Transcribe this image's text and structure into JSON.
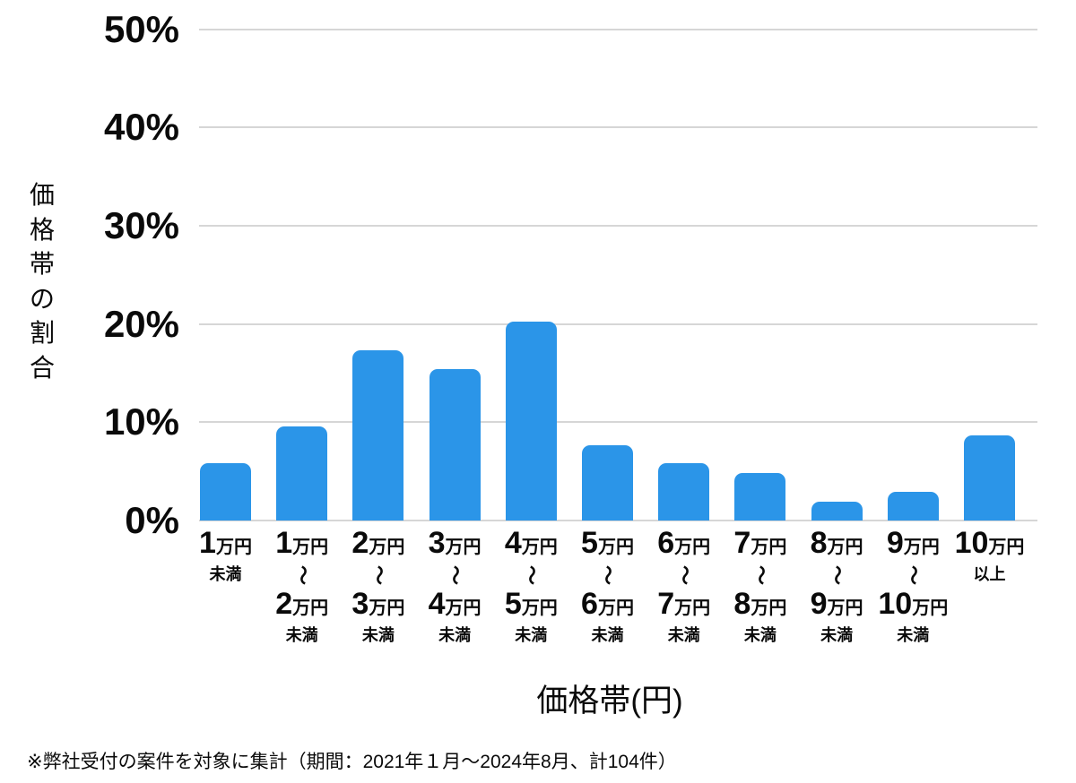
{
  "chart_data": {
    "type": "bar",
    "title": "",
    "xlabel": "価格帯(円)",
    "ylabel": "価格帯の割合",
    "ylim": [
      0,
      50
    ],
    "grid": true,
    "legend": "none",
    "ytick_labels": [
      "0%",
      "10%",
      "20%",
      "30%",
      "40%",
      "50%"
    ],
    "bar_color": "#2B95E8",
    "grid_color": "#d6d6d6",
    "categories": [
      {
        "num": "1",
        "unit": "万円",
        "qualifier": "未満"
      },
      {
        "num": "1",
        "unit": "万円",
        "tilde": "〜",
        "num2": "2",
        "unit2": "万円",
        "qualifier": "未満"
      },
      {
        "num": "2",
        "unit": "万円",
        "tilde": "〜",
        "num2": "3",
        "unit2": "万円",
        "qualifier": "未満"
      },
      {
        "num": "3",
        "unit": "万円",
        "tilde": "〜",
        "num2": "4",
        "unit2": "万円",
        "qualifier": "未満"
      },
      {
        "num": "4",
        "unit": "万円",
        "tilde": "〜",
        "num2": "5",
        "unit2": "万円",
        "qualifier": "未満"
      },
      {
        "num": "5",
        "unit": "万円",
        "tilde": "〜",
        "num2": "6",
        "unit2": "万円",
        "qualifier": "未満"
      },
      {
        "num": "6",
        "unit": "万円",
        "tilde": "〜",
        "num2": "7",
        "unit2": "万円",
        "qualifier": "未満"
      },
      {
        "num": "7",
        "unit": "万円",
        "tilde": "〜",
        "num2": "8",
        "unit2": "万円",
        "qualifier": "未満"
      },
      {
        "num": "8",
        "unit": "万円",
        "tilde": "〜",
        "num2": "9",
        "unit2": "万円",
        "qualifier": "未満"
      },
      {
        "num": "9",
        "unit": "万円",
        "tilde": "〜",
        "num2": "10",
        "unit2": "万円",
        "qualifier": "未満"
      },
      {
        "num": "10",
        "unit": "万円",
        "qualifier": "以上"
      }
    ],
    "values": [
      5.8,
      9.6,
      17.3,
      15.4,
      20.2,
      7.7,
      5.8,
      4.8,
      1.9,
      2.9,
      8.7
    ],
    "footnote": "※弊社受付の案件を対象に集計（期間：2021年１月～2024年8月、計104件）"
  }
}
